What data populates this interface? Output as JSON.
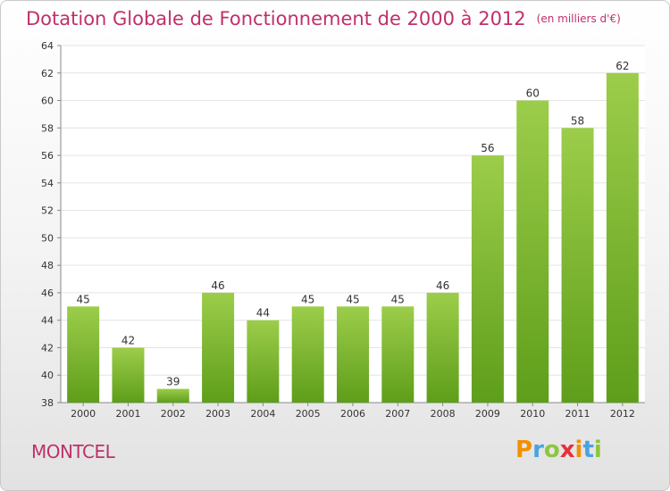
{
  "header": {
    "title": "Dotation Globale de Fonctionnement de 2000 à 2012",
    "subtitle": "(en milliers d'€)"
  },
  "footer": {
    "commune": "MONTCEL",
    "logo": {
      "letters": [
        "P",
        "r",
        "o",
        "x",
        "i",
        "t",
        "i"
      ],
      "colors": [
        "#f29000",
        "#4aa3df",
        "#8cc63f",
        "#e8303a",
        "#f29000",
        "#4aa3df",
        "#8cc63f"
      ]
    }
  },
  "chart_data": {
    "type": "bar",
    "title": "Dotation Globale de Fonctionnement de 2000 à 2012",
    "subtitle": "(en milliers d'€)",
    "categories": [
      "2000",
      "2001",
      "2002",
      "2003",
      "2004",
      "2005",
      "2006",
      "2007",
      "2008",
      "2009",
      "2010",
      "2011",
      "2012"
    ],
    "values": [
      45,
      42,
      39,
      46,
      44,
      45,
      45,
      45,
      46,
      56,
      60,
      58,
      62
    ],
    "data_labels": [
      "45",
      "42",
      "39",
      "46",
      "44",
      "45",
      "45",
      "45",
      "46",
      "56",
      "60",
      "58",
      "62"
    ],
    "ylim": [
      38,
      64
    ],
    "yticks": [
      "38",
      "40",
      "42",
      "44",
      "46",
      "48",
      "50",
      "52",
      "54",
      "56",
      "58",
      "60",
      "62",
      "64"
    ],
    "grid": true,
    "bar_color_top": "#9ccd4a",
    "bar_color_bottom": "#5e9e1a",
    "text_color": "#c0306a"
  }
}
